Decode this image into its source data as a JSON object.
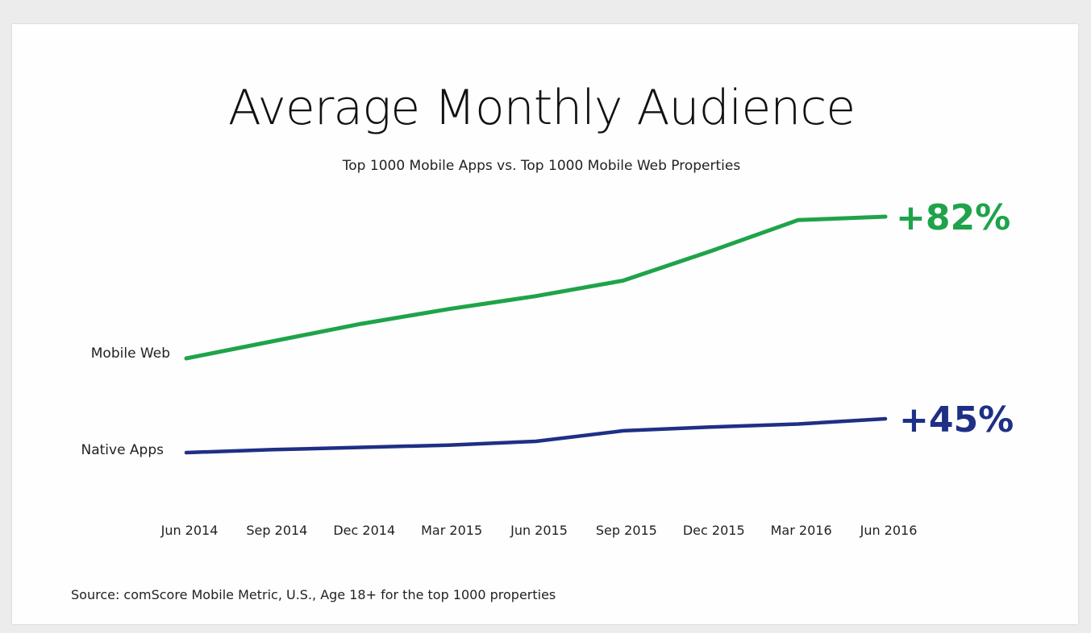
{
  "chart_data": {
    "type": "line",
    "title": "Average Monthly Audience",
    "subtitle": "Top 1000 Mobile Apps vs. Top 1000 Mobile Web Properties",
    "categories": [
      "Jun 2014",
      "Sep 2014",
      "Dec 2014",
      "Mar 2015",
      "Jun 2015",
      "Sep 2015",
      "Dec 2015",
      "Mar 2016",
      "Jun 2016"
    ],
    "series": [
      {
        "name": "Mobile Web",
        "color": "#1fa34a",
        "values": [
          100,
          110,
          120,
          128.5,
          136,
          145,
          162,
          180,
          182
        ],
        "end_label": "+82%"
      },
      {
        "name": "Native Apps",
        "color": "#1f2f86",
        "values": [
          100,
          104,
          107,
          110,
          115,
          129,
          134,
          138,
          145
        ],
        "end_label": "+45%"
      }
    ],
    "ylim": [
      100,
      182
    ],
    "grid": false,
    "legend": "none",
    "source": "Source: comScore Mobile Metric, U.S., Age 18+ for the top 1000 properties"
  }
}
